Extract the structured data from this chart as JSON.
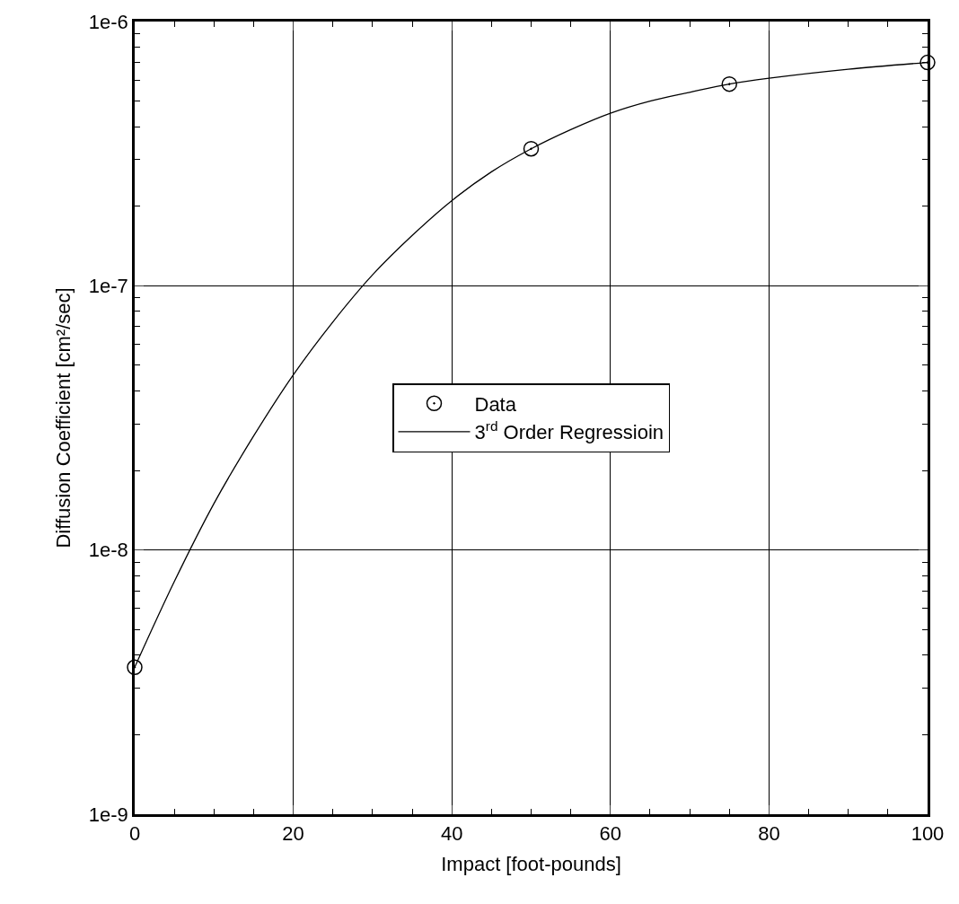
{
  "chart_data": {
    "type": "scatter",
    "xlabel": "Impact [foot-pounds]",
    "ylabel": "Diffusion Coefficient [cm²/sec]",
    "log": "y",
    "grid": true,
    "legend": "center",
    "xlim": [
      0,
      100
    ],
    "xticks": [
      0,
      20,
      40,
      60,
      80,
      100
    ],
    "ylim": [
      1e-09,
      1e-06
    ],
    "yticks": [
      {
        "value": 1e-09,
        "label": "1e-9"
      },
      {
        "value": 1e-08,
        "label": "1e-8"
      },
      {
        "value": 1e-07,
        "label": "1e-7"
      },
      {
        "value": 1e-06,
        "label": "1e-6"
      }
    ],
    "series": [
      {
        "name": "Data",
        "marker": "circle",
        "color": "#000000",
        "x": [
          0,
          50,
          75,
          100
        ],
        "values": [
          3.6e-09,
          3.3e-07,
          5.8e-07,
          7e-07
        ]
      },
      {
        "name": "3$^{rd}$ Order Regressioin",
        "type": "line",
        "marker": "none",
        "color": "#000000",
        "line_style": "solid",
        "x": [
          0,
          5,
          10,
          15,
          20,
          25,
          30,
          35,
          40,
          45,
          50,
          55,
          60,
          65,
          70,
          75,
          80,
          90,
          100
        ],
        "values": [
          3.6e-09,
          7.6e-09,
          1.5e-08,
          2.7e-08,
          4.6e-08,
          7.3e-08,
          1.1e-07,
          1.55e-07,
          2.1e-07,
          2.7e-07,
          3.3e-07,
          3.9e-07,
          4.5e-07,
          5e-07,
          5.4e-07,
          5.8e-07,
          6.1e-07,
          6.6e-07,
          7e-07
        ]
      }
    ]
  }
}
